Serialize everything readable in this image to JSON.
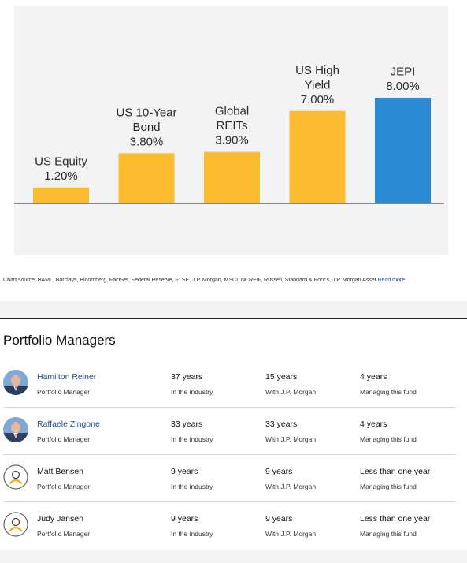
{
  "chart_data": {
    "type": "bar",
    "categories": [
      "US Equity",
      "US 10-Year Bond",
      "Global REITs",
      "US High Yield",
      "JEPI"
    ],
    "label_lines": [
      [
        "US Equity"
      ],
      [
        "US 10-Year",
        "Bond"
      ],
      [
        "Global",
        "REITs"
      ],
      [
        "US High",
        "Yield"
      ],
      [
        "JEPI"
      ]
    ],
    "values": [
      1.2,
      3.8,
      3.9,
      7.0,
      8.0
    ],
    "value_labels": [
      "1.20%",
      "3.80%",
      "3.90%",
      "7.00%",
      "8.00%"
    ],
    "colors": [
      "#fbbc2f",
      "#fbbc2f",
      "#fbbc2f",
      "#fbbc2f",
      "#2a8ad4"
    ],
    "ylim": [
      0,
      8.2
    ],
    "grid": false,
    "title": "",
    "xlabel": "",
    "ylabel": ""
  },
  "source": {
    "text": "Chart source: BAML, Barclays, Bloomberg, FactSet, Federal Reserve, FTSE, J.P. Morgan, MSCI, NCREIF, Russell, Standard & Poor's, J.P. Morgan Asset ",
    "link": "Read more"
  },
  "section_title": "Portfolio Managers",
  "managers": [
    {
      "name": "Hamilton Reiner",
      "role": "Portfolio Manager",
      "avatar": "photo",
      "linked": true,
      "stats": [
        {
          "value": "37 years",
          "label": "In the industry"
        },
        {
          "value": "15 years",
          "label": "With J.P. Morgan"
        },
        {
          "value": "4 years",
          "label": "Managing this fund"
        }
      ]
    },
    {
      "name": "Raffaele Zingone",
      "role": "Portfolio Manager",
      "avatar": "photo",
      "linked": true,
      "stats": [
        {
          "value": "33 years",
          "label": "In the industry"
        },
        {
          "value": "33 years",
          "label": "With J.P. Morgan"
        },
        {
          "value": "4 years",
          "label": "Managing this fund"
        }
      ]
    },
    {
      "name": "Matt Bensen",
      "role": "Portfolio Manager",
      "avatar": "user-outline-icon",
      "linked": false,
      "stats": [
        {
          "value": "9 years",
          "label": "In the industry"
        },
        {
          "value": "9 years",
          "label": "With J.P. Morgan"
        },
        {
          "value": "Less than one year",
          "label": "Managing this fund"
        }
      ]
    },
    {
      "name": "Judy Jansen",
      "role": "Portfolio Manager",
      "avatar": "user-outline-icon",
      "linked": false,
      "stats": [
        {
          "value": "9 years",
          "label": "In the industry"
        },
        {
          "value": "9 years",
          "label": "With J.P. Morgan"
        },
        {
          "value": "Less than one year",
          "label": "Managing this fund"
        }
      ]
    }
  ]
}
